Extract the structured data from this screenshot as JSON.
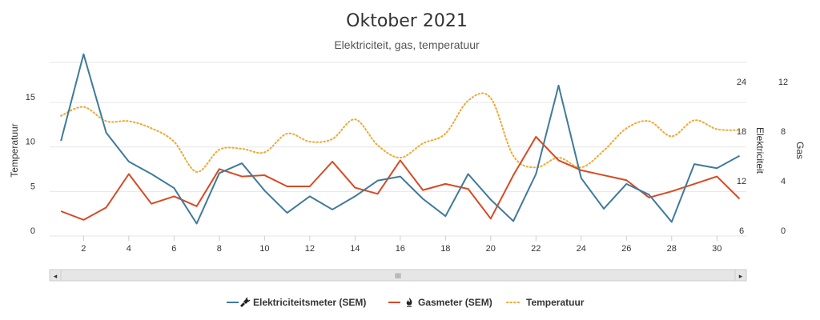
{
  "chart_data": {
    "type": "line",
    "title": "Oktober 2021",
    "subtitle": "Elektriciteit, gas, temperatuur",
    "x": [
      1,
      2,
      3,
      4,
      5,
      6,
      7,
      8,
      9,
      10,
      11,
      12,
      13,
      14,
      15,
      16,
      17,
      18,
      19,
      20,
      21,
      22,
      23,
      24,
      25,
      26,
      27,
      28,
      29,
      30,
      31
    ],
    "xlim": [
      0.5,
      31.3
    ],
    "x_ticks": [
      2,
      4,
      6,
      8,
      10,
      12,
      14,
      16,
      18,
      20,
      22,
      24,
      26,
      28,
      30
    ],
    "grid": true,
    "legend_position": "bottom-center",
    "axes": [
      {
        "id": "temp",
        "title": "Temperatuur",
        "side": "left",
        "range": [
          0,
          19.5
        ],
        "ticks": [
          0,
          5,
          10,
          15
        ]
      },
      {
        "id": "elec",
        "title": "Elektriciteit",
        "side": "right",
        "range": [
          6,
          27
        ],
        "ticks": [
          6,
          12,
          18,
          24
        ]
      },
      {
        "id": "gas",
        "title": "Gas",
        "side": "right",
        "range": [
          0,
          14
        ],
        "ticks": [
          0,
          4,
          8,
          12
        ]
      }
    ],
    "series": [
      {
        "name": "Elektriciteitsmeter (SEM)",
        "axis": "elec",
        "color": "#3f7a9b",
        "style": "solid",
        "icon": "plug-icon",
        "values": [
          17.5,
          28.0,
          18.5,
          15.0,
          13.5,
          11.8,
          7.5,
          13.6,
          14.8,
          11.5,
          8.8,
          10.8,
          9.2,
          10.8,
          12.7,
          13.2,
          10.5,
          8.4,
          13.5,
          10.4,
          7.8,
          13.5,
          24.2,
          13.0,
          9.3,
          12.3,
          11.0,
          7.7,
          14.7,
          14.2,
          15.7
        ]
      },
      {
        "name": "Gasmeter (SEM)",
        "axis": "gas",
        "color": "#d64a24",
        "style": "solid",
        "icon": "flame-icon",
        "values": [
          2.0,
          1.3,
          2.3,
          5.0,
          2.6,
          3.2,
          2.4,
          5.4,
          4.8,
          4.9,
          4.0,
          4.0,
          6.0,
          3.9,
          3.4,
          6.1,
          3.7,
          4.2,
          3.8,
          1.4,
          4.9,
          8.0,
          6.1,
          5.3,
          4.9,
          4.5,
          3.1,
          3.6,
          4.2,
          4.8,
          3.0
        ]
      },
      {
        "name": "Temperatuur",
        "axis": "temp",
        "color": "#f0a830",
        "style": "dotted",
        "values": [
          13.5,
          14.5,
          12.9,
          12.9,
          12.1,
          10.6,
          7.2,
          9.7,
          9.8,
          9.4,
          11.5,
          10.6,
          10.9,
          13.1,
          10.2,
          8.8,
          10.4,
          11.5,
          15.2,
          15.5,
          9.0,
          7.7,
          8.8,
          7.7,
          9.6,
          12.1,
          12.9,
          11.2,
          13.0,
          12.0,
          11.9
        ]
      }
    ]
  },
  "scrollbar": {
    "thumb_label": "III",
    "left_arrow": "◂",
    "right_arrow": "▸"
  }
}
